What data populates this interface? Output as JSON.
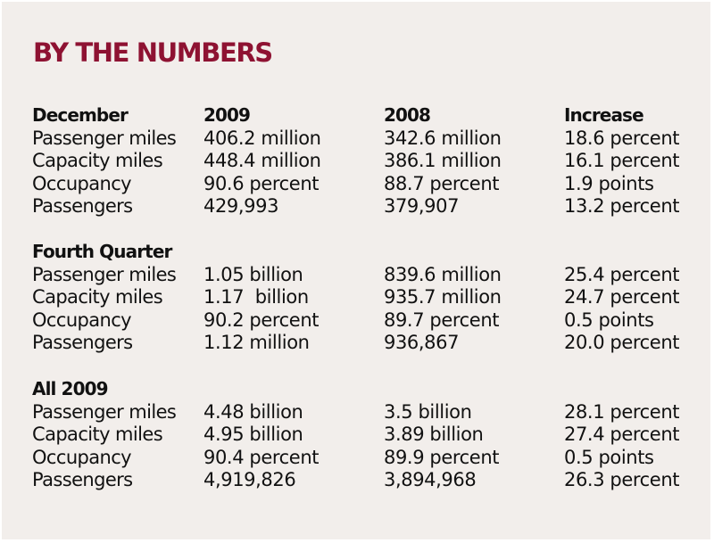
{
  "title": "BY THE NUMBERS",
  "columns": [
    "2009",
    "2008",
    "Increase"
  ],
  "sections": [
    {
      "heading": "December",
      "rows": [
        [
          "Passenger miles",
          "406.2 million",
          "342.6 million",
          "18.6 percent"
        ],
        [
          "Capacity miles",
          "448.4 million",
          "386.1 million",
          "16.1 percent"
        ],
        [
          "Occupancy",
          "90.6 percent",
          "88.7 percent",
          "1.9 points"
        ],
        [
          "Passengers",
          "429,993",
          "379,907",
          "13.2 percent"
        ]
      ]
    },
    {
      "heading": "Fourth Quarter",
      "rows": [
        [
          "Passenger miles",
          "1.05 billion",
          "839.6 million",
          "25.4 percent"
        ],
        [
          "Capacity miles",
          "1.17  billion",
          "935.7 million",
          "24.7 percent"
        ],
        [
          "Occupancy",
          "90.2 percent",
          "89.7 percent",
          "0.5 points"
        ],
        [
          "Passengers",
          "1.12 million",
          "936,867",
          "20.0 percent"
        ]
      ]
    },
    {
      "heading": "All 2009",
      "rows": [
        [
          "Passenger miles",
          "4.48 billion",
          "3.5 billion",
          "28.1 percent"
        ],
        [
          "Capacity miles",
          "4.95 billion",
          "3.89 billion",
          "27.4 percent"
        ],
        [
          "Occupancy",
          "90.4 percent",
          "89.9 percent",
          "0.5 points"
        ],
        [
          "Passengers",
          "4,919,826",
          "3,894,968",
          "26.3 percent"
        ]
      ]
    }
  ]
}
